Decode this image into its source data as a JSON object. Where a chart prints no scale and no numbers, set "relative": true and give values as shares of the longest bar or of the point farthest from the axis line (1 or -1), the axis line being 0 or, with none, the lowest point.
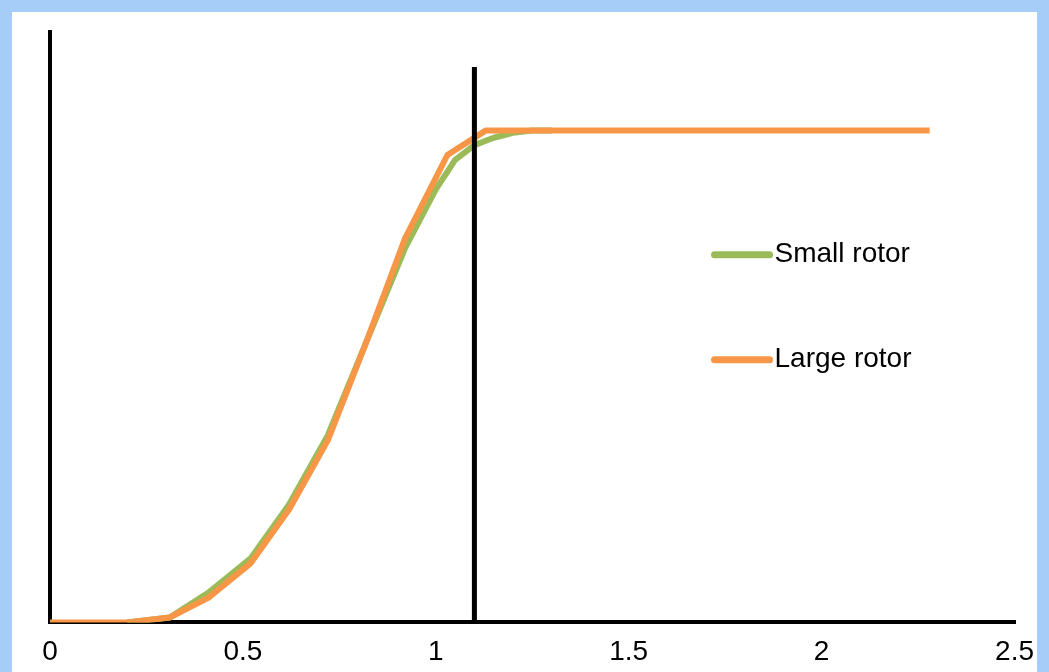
{
  "chart_data": {
    "type": "line",
    "relative": true,
    "xlim": [
      0,
      2.5
    ],
    "xticks": [
      0,
      0.5,
      1,
      1.5,
      2,
      2.5
    ],
    "grid": false,
    "legend": "right",
    "marker": "none",
    "line_style": "solid",
    "series": [
      {
        "name": "Small rotor",
        "color": "#9bbb59",
        "x": [
          0.2,
          0.31,
          0.41,
          0.52,
          0.62,
          0.72,
          0.82,
          0.92,
          1.0,
          1.05,
          1.1,
          1.15,
          1.2,
          1.25,
          1.3
        ],
        "values": [
          0,
          0.01,
          0.06,
          0.13,
          0.24,
          0.38,
          0.57,
          0.76,
          0.88,
          0.94,
          0.97,
          0.985,
          0.995,
          1,
          1
        ]
      },
      {
        "name": "Large rotor",
        "color": "#f79646",
        "x": [
          0,
          0.1,
          0.2,
          0.31,
          0.41,
          0.52,
          0.62,
          0.72,
          0.82,
          0.92,
          1.03,
          1.13,
          1.4,
          1.8,
          2.28
        ],
        "values": [
          0,
          0,
          0,
          0.01,
          0.05,
          0.12,
          0.23,
          0.37,
          0.57,
          0.78,
          0.95,
          1,
          1,
          1,
          1
        ]
      }
    ],
    "ref_lines": [
      {
        "axis": "x",
        "value": 1.1,
        "color": "#000000"
      }
    ]
  }
}
